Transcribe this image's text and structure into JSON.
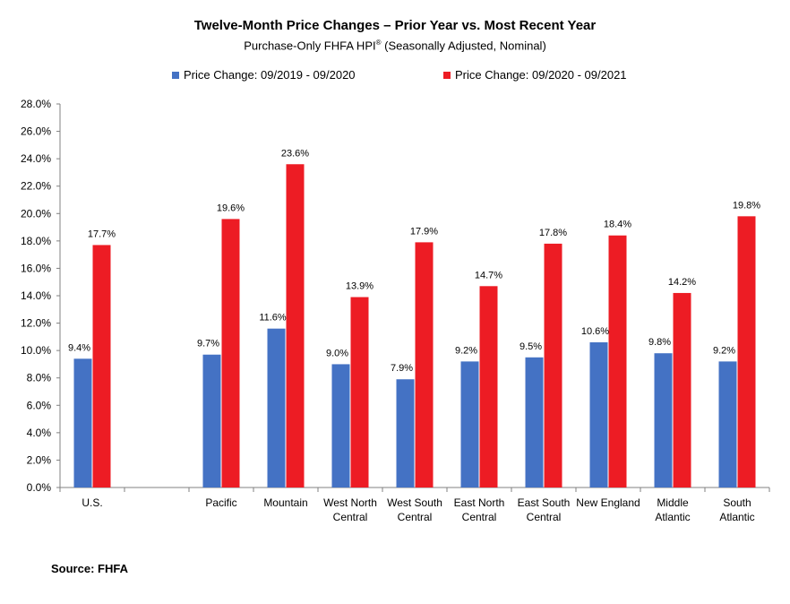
{
  "chart_data": {
    "type": "bar",
    "title": "Twelve-Month Price Changes – Prior Year vs. Most Recent Year",
    "subtitle_main": "Purchase-Only FHFA HPI",
    "subtitle_reg": "®",
    "subtitle_rest": " (Seasonally Adjusted, Nominal)",
    "categories": [
      "U.S.",
      "",
      "Pacific",
      "Mountain",
      "West North Central",
      "West South Central",
      "East North Central",
      "East South Central",
      "New England",
      "Middle Atlantic",
      "South Atlantic"
    ],
    "category_lines": [
      [
        "U.S."
      ],
      [],
      [
        "Pacific"
      ],
      [
        "Mountain"
      ],
      [
        "West North",
        "Central"
      ],
      [
        "West South",
        "Central"
      ],
      [
        "East North",
        "Central"
      ],
      [
        "East South",
        "Central"
      ],
      [
        "New England"
      ],
      [
        "Middle",
        "Atlantic"
      ],
      [
        "South",
        "Atlantic"
      ]
    ],
    "series": [
      {
        "name": "Price Change:  09/2019 - 09/2020",
        "color": "#4472C4",
        "values": [
          9.4,
          null,
          9.7,
          11.6,
          9.0,
          7.9,
          9.2,
          9.5,
          10.6,
          9.8,
          9.2
        ],
        "labels": [
          "9.4%",
          "",
          "9.7%",
          "11.6%",
          "9.0%",
          "7.9%",
          "9.2%",
          "9.5%",
          "10.6%",
          "9.8%",
          "9.2%"
        ]
      },
      {
        "name": "Price Change:  09/2020 - 09/2021",
        "color": "#ED1C24",
        "values": [
          17.7,
          null,
          19.6,
          23.6,
          13.9,
          17.9,
          14.7,
          17.8,
          18.4,
          14.2,
          19.8
        ],
        "labels": [
          "17.7%",
          "",
          "19.6%",
          "23.6%",
          "13.9%",
          "17.9%",
          "14.7%",
          "17.8%",
          "18.4%",
          "14.2%",
          "19.8%"
        ]
      }
    ],
    "ylim": [
      0,
      28
    ],
    "yticks": [
      0,
      2,
      4,
      6,
      8,
      10,
      12,
      14,
      16,
      18,
      20,
      22,
      24,
      26,
      28
    ],
    "ytick_labels": [
      "0.0%",
      "2.0%",
      "4.0%",
      "6.0%",
      "8.0%",
      "10.0%",
      "12.0%",
      "14.0%",
      "16.0%",
      "18.0%",
      "20.0%",
      "22.0%",
      "24.0%",
      "26.0%",
      "28.0%"
    ],
    "legend_position": "top",
    "grid": false
  },
  "source_note": "Source: FHFA"
}
